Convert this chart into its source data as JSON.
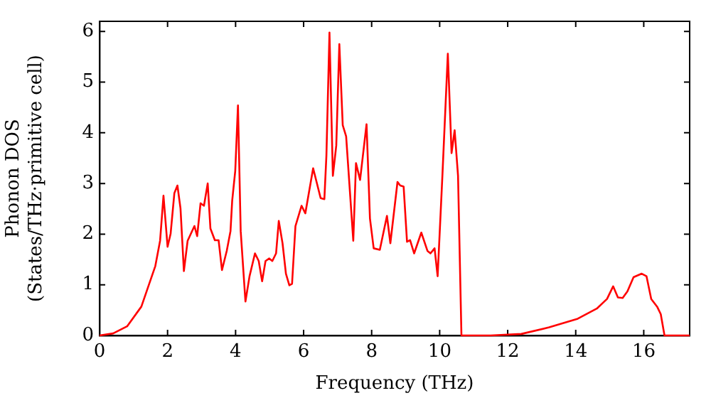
{
  "chart_data": {
    "type": "line",
    "xlabel": "Frequency (THz)",
    "ylabel": "Phonon DOS\n(States/THz·primitive cell)",
    "xlim": [
      0,
      17.35
    ],
    "ylim": [
      0,
      6.2
    ],
    "xticks": [
      0,
      2,
      4,
      6,
      8,
      10,
      12,
      14,
      16
    ],
    "yticks": [
      0,
      1,
      2,
      3,
      4,
      5,
      6
    ],
    "grid": false,
    "legend": false,
    "marker": "none",
    "line_style": "solid",
    "series": [
      {
        "color": "#ff0000",
        "x": [
          0,
          0.4,
          0.81,
          1.23,
          1.64,
          1.78,
          1.88,
          2.0,
          2.09,
          2.2,
          2.29,
          2.38,
          2.48,
          2.59,
          2.79,
          2.87,
          2.97,
          3.07,
          3.18,
          3.26,
          3.39,
          3.5,
          3.6,
          3.74,
          3.85,
          3.9,
          3.99,
          4.07,
          4.15,
          4.29,
          4.41,
          4.57,
          4.68,
          4.78,
          4.88,
          4.99,
          5.08,
          5.19,
          5.27,
          5.38,
          5.48,
          5.58,
          5.66,
          5.76,
          5.94,
          6.05,
          6.28,
          6.5,
          6.61,
          6.67,
          6.76,
          6.86,
          6.96,
          7.05,
          7.15,
          7.25,
          7.46,
          7.54,
          7.66,
          7.85,
          7.95,
          8.06,
          8.24,
          8.45,
          8.55,
          8.76,
          8.84,
          8.94,
          9.04,
          9.13,
          9.25,
          9.46,
          9.64,
          9.73,
          9.85,
          9.94,
          10.08,
          10.24,
          10.35,
          10.44,
          10.54,
          10.64,
          11.5,
          12.4,
          13.22,
          14.06,
          14.62,
          14.92,
          15.1,
          15.24,
          15.38,
          15.52,
          15.7,
          15.94,
          16.08,
          16.22,
          16.4,
          16.5,
          16.61,
          17.35
        ],
        "values": [
          0,
          0.04,
          0.18,
          0.57,
          1.37,
          1.87,
          2.76,
          1.75,
          2.01,
          2.81,
          2.96,
          2.51,
          1.27,
          1.87,
          2.16,
          1.96,
          2.61,
          2.56,
          3.0,
          2.11,
          1.88,
          1.88,
          1.29,
          1.67,
          2.06,
          2.66,
          3.25,
          4.54,
          2.06,
          0.67,
          1.17,
          1.62,
          1.47,
          1.07,
          1.47,
          1.52,
          1.47,
          1.62,
          2.26,
          1.82,
          1.22,
          0.99,
          1.02,
          2.16,
          2.56,
          2.41,
          3.3,
          2.71,
          2.69,
          3.55,
          5.98,
          3.15,
          3.75,
          5.75,
          4.15,
          3.93,
          1.87,
          3.4,
          3.07,
          4.17,
          2.31,
          1.72,
          1.69,
          2.36,
          1.82,
          3.03,
          2.96,
          2.94,
          1.85,
          1.88,
          1.62,
          2.03,
          1.67,
          1.62,
          1.72,
          1.17,
          3.15,
          5.56,
          3.6,
          4.05,
          3.15,
          0,
          0,
          0.03,
          0.16,
          0.33,
          0.53,
          0.72,
          0.97,
          0.75,
          0.74,
          0.87,
          1.15,
          1.22,
          1.17,
          0.72,
          0.56,
          0.42,
          0,
          0
        ]
      }
    ]
  }
}
